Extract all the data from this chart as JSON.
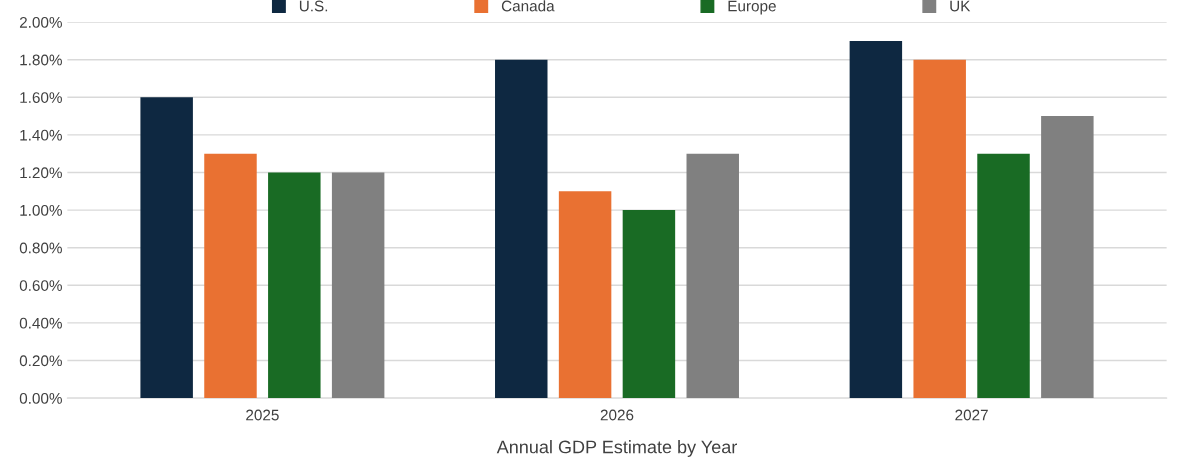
{
  "chart_data": {
    "type": "bar",
    "xlabel": "Annual GDP Estimate by Year",
    "categories": [
      "2025",
      "2026",
      "2027"
    ],
    "series": [
      {
        "name": "U.S.",
        "color": "#0e2841",
        "values": [
          1.6,
          1.8,
          1.9
        ]
      },
      {
        "name": "Canada",
        "color": "#e97132",
        "values": [
          1.3,
          1.1,
          1.8
        ]
      },
      {
        "name": "Europe",
        "color": "#196b24",
        "values": [
          1.2,
          1.0,
          1.3
        ]
      },
      {
        "name": "UK",
        "color": "#808080",
        "values": [
          1.2,
          1.3,
          1.5
        ]
      }
    ],
    "ylim": [
      0,
      2.0
    ],
    "yticks": [
      {
        "value": 0,
        "label": "0.00%"
      },
      {
        "value": 0.2,
        "label": "0.20%"
      },
      {
        "value": 0.4,
        "label": "0.40%"
      },
      {
        "value": 0.6,
        "label": "0.60%"
      },
      {
        "value": 0.8,
        "label": "0.80%"
      },
      {
        "value": 1.0,
        "label": "1.00%"
      },
      {
        "value": 1.2,
        "label": "1.20%"
      },
      {
        "value": 1.4,
        "label": "1.40%"
      },
      {
        "value": 1.6,
        "label": "1.60%"
      },
      {
        "value": 1.8,
        "label": "1.80%"
      },
      {
        "value": 2.0,
        "label": "2.00%"
      }
    ],
    "grid": "y",
    "legend": "top"
  }
}
